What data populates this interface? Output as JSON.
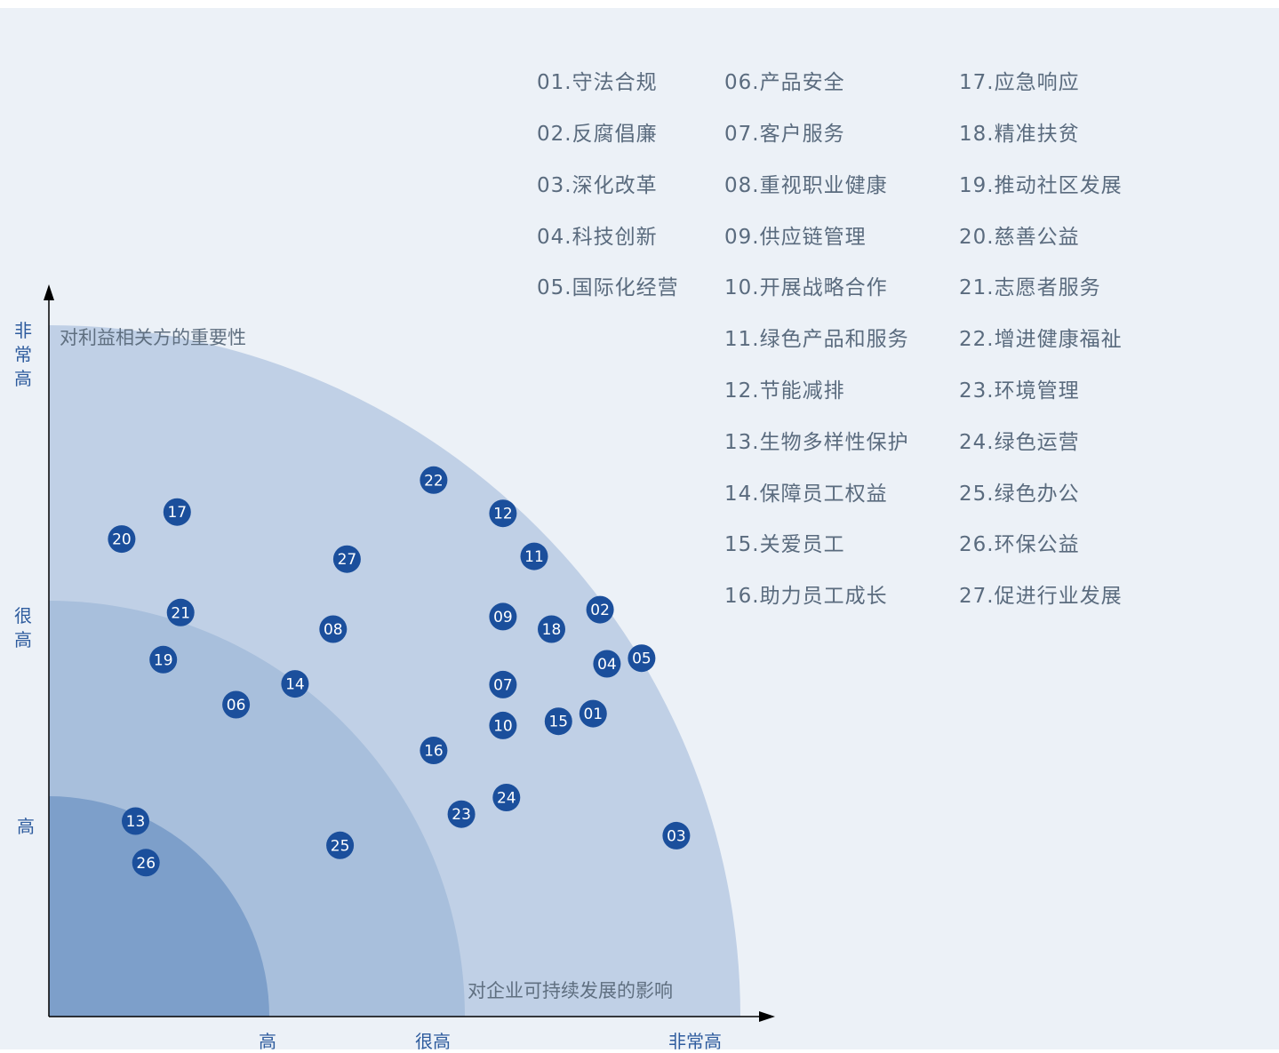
{
  "chart_data": {
    "type": "scatter",
    "title": "",
    "ylabel": "对利益相关方的重要性",
    "xlabel": "对企业可持续发展的影响",
    "x_levels": [
      "高",
      "很高",
      "非常高"
    ],
    "y_levels": [
      "高",
      "很高",
      "非常高"
    ],
    "colors": {
      "zone_outer": "#c0d0e6",
      "zone_middle": "#a8bfdc",
      "zone_inner": "#7d9fca",
      "point": "#1b4f9c",
      "point_text": "#ffffff",
      "axis": "#000000"
    },
    "points": [
      {
        "id": "01",
        "x": 7.85,
        "y": 4.37
      },
      {
        "id": "02",
        "x": 7.95,
        "y": 5.87
      },
      {
        "id": "03",
        "x": 9.05,
        "y": 2.61
      },
      {
        "id": "04",
        "x": 8.05,
        "y": 5.09
      },
      {
        "id": "05",
        "x": 8.55,
        "y": 5.17
      },
      {
        "id": "06",
        "x": 2.7,
        "y": 4.5
      },
      {
        "id": "07",
        "x": 6.55,
        "y": 4.79
      },
      {
        "id": "08",
        "x": 4.1,
        "y": 5.59
      },
      {
        "id": "09",
        "x": 6.55,
        "y": 5.77
      },
      {
        "id": "10",
        "x": 6.55,
        "y": 4.2
      },
      {
        "id": "11",
        "x": 7.0,
        "y": 6.64
      },
      {
        "id": "12",
        "x": 6.55,
        "y": 7.26
      },
      {
        "id": "13",
        "x": 1.25,
        "y": 2.82
      },
      {
        "id": "14",
        "x": 3.55,
        "y": 4.8
      },
      {
        "id": "15",
        "x": 7.35,
        "y": 4.26
      },
      {
        "id": "16",
        "x": 5.55,
        "y": 3.84
      },
      {
        "id": "17",
        "x": 1.85,
        "y": 7.28
      },
      {
        "id": "18",
        "x": 7.25,
        "y": 5.59
      },
      {
        "id": "19",
        "x": 1.65,
        "y": 5.15
      },
      {
        "id": "20",
        "x": 1.05,
        "y": 6.89
      },
      {
        "id": "21",
        "x": 1.9,
        "y": 5.83
      },
      {
        "id": "22",
        "x": 5.55,
        "y": 7.74
      },
      {
        "id": "23",
        "x": 5.95,
        "y": 2.92
      },
      {
        "id": "24",
        "x": 6.6,
        "y": 3.16
      },
      {
        "id": "25",
        "x": 4.2,
        "y": 2.47
      },
      {
        "id": "26",
        "x": 1.4,
        "y": 2.22
      },
      {
        "id": "27",
        "x": 4.3,
        "y": 6.6
      }
    ]
  },
  "legend": [
    {
      "label": "01.守法合规"
    },
    {
      "label": "02.反腐倡廉"
    },
    {
      "label": "03.深化改革"
    },
    {
      "label": "04.科技创新"
    },
    {
      "label": "05.国际化经营"
    },
    {
      "label": "06.产品安全"
    },
    {
      "label": "07.客户服务"
    },
    {
      "label": "08.重视职业健康"
    },
    {
      "label": "09.供应链管理"
    },
    {
      "label": "10.开展战略合作"
    },
    {
      "label": "11.绿色产品和服务"
    },
    {
      "label": "12.节能减排"
    },
    {
      "label": "13.生物多样性保护"
    },
    {
      "label": "14.保障员工权益"
    },
    {
      "label": "15.关爱员工"
    },
    {
      "label": "16.助力员工成长"
    },
    {
      "label": "17.应急响应"
    },
    {
      "label": "18.精准扶贫"
    },
    {
      "label": "19.推动社区发展"
    },
    {
      "label": "20.慈善公益"
    },
    {
      "label": "21.志愿者服务"
    },
    {
      "label": "22.增进健康福祉"
    },
    {
      "label": "23.环境管理"
    },
    {
      "label": "24.绿色运营"
    },
    {
      "label": "25.绿色办公"
    },
    {
      "label": "26.环保公益"
    },
    {
      "label": "27.促进行业发展"
    }
  ]
}
